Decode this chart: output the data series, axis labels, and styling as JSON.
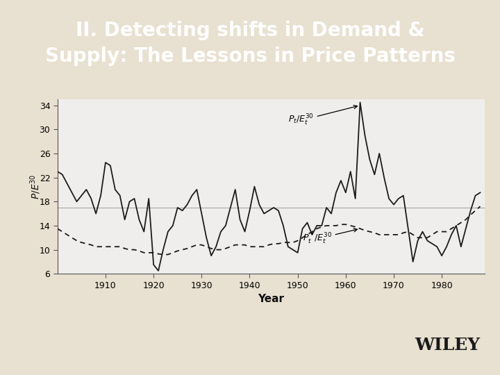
{
  "title": "II. Detecting shifts in Demand &\nSupply: The Lessons in Price Patterns",
  "title_bg_color": "#4a2008",
  "title_text_color": "#ffffff",
  "chart_bg_color": "#f0eeec",
  "outer_bg_color": "#e8e0d0",
  "bottom_bg_color": "#e8dfc8",
  "ylabel": "P/E^{30}",
  "xlabel": "Year",
  "ylim": [
    6,
    35
  ],
  "yticks": [
    6,
    10,
    14,
    18,
    22,
    26,
    30,
    34
  ],
  "xlim": [
    1900,
    1989
  ],
  "xticks": [
    1910,
    1920,
    1930,
    1940,
    1950,
    1960,
    1970,
    1980
  ],
  "hline_y": 17.0,
  "solid_x": [
    1900,
    1901,
    1902,
    1903,
    1904,
    1905,
    1906,
    1907,
    1908,
    1909,
    1910,
    1911,
    1912,
    1913,
    1914,
    1915,
    1916,
    1917,
    1918,
    1919,
    1920,
    1921,
    1922,
    1923,
    1924,
    1925,
    1926,
    1927,
    1928,
    1929,
    1930,
    1931,
    1932,
    1933,
    1934,
    1935,
    1936,
    1937,
    1938,
    1939,
    1940,
    1941,
    1942,
    1943,
    1944,
    1945,
    1946,
    1947,
    1948,
    1949,
    1950,
    1951,
    1952,
    1953,
    1954,
    1955,
    1956,
    1957,
    1958,
    1959,
    1960,
    1961,
    1962,
    1963,
    1964,
    1965,
    1966,
    1967,
    1968,
    1969,
    1970,
    1971,
    1972,
    1973,
    1974,
    1975,
    1976,
    1977,
    1978,
    1979,
    1980,
    1981,
    1982,
    1983,
    1984,
    1985,
    1986,
    1987,
    1988
  ],
  "solid_y": [
    23.0,
    22.5,
    21.0,
    19.5,
    18.0,
    19.0,
    20.0,
    18.5,
    16.0,
    19.0,
    24.5,
    24.0,
    20.0,
    19.0,
    15.0,
    18.0,
    18.5,
    15.0,
    13.0,
    18.5,
    7.5,
    6.5,
    10.0,
    13.0,
    14.0,
    17.0,
    16.5,
    17.5,
    19.0,
    20.0,
    16.0,
    12.0,
    9.0,
    10.5,
    13.0,
    14.0,
    17.0,
    20.0,
    15.0,
    13.0,
    16.5,
    20.5,
    17.5,
    16.0,
    16.5,
    17.0,
    16.5,
    14.0,
    10.5,
    10.0,
    9.5,
    13.5,
    14.5,
    12.5,
    14.0,
    14.0,
    17.0,
    16.0,
    19.5,
    21.5,
    19.5,
    23.0,
    18.5,
    34.5,
    29.0,
    25.0,
    22.5,
    26.0,
    22.0,
    18.5,
    17.5,
    18.5,
    19.0,
    13.5,
    8.0,
    11.5,
    13.0,
    11.5,
    11.0,
    10.5,
    9.0,
    10.5,
    12.5,
    14.0,
    10.5,
    13.5,
    16.5,
    19.0,
    19.5
  ],
  "dashed_x": [
    1900,
    1901,
    1902,
    1903,
    1904,
    1905,
    1906,
    1907,
    1908,
    1909,
    1910,
    1911,
    1912,
    1913,
    1914,
    1915,
    1916,
    1917,
    1918,
    1919,
    1920,
    1921,
    1922,
    1923,
    1924,
    1925,
    1926,
    1927,
    1928,
    1929,
    1930,
    1931,
    1932,
    1933,
    1934,
    1935,
    1936,
    1937,
    1938,
    1939,
    1940,
    1941,
    1942,
    1943,
    1944,
    1945,
    1946,
    1947,
    1948,
    1949,
    1950,
    1951,
    1952,
    1953,
    1954,
    1955,
    1956,
    1957,
    1958,
    1959,
    1960,
    1961,
    1962,
    1963,
    1964,
    1965,
    1966,
    1967,
    1968,
    1969,
    1970,
    1971,
    1972,
    1973,
    1974,
    1975,
    1976,
    1977,
    1978,
    1979,
    1980,
    1981,
    1982,
    1983,
    1984,
    1985,
    1986,
    1987,
    1988
  ],
  "dashed_y": [
    13.5,
    13.0,
    12.5,
    12.0,
    11.5,
    11.2,
    11.0,
    10.8,
    10.5,
    10.5,
    10.5,
    10.5,
    10.5,
    10.5,
    10.2,
    10.0,
    10.0,
    9.8,
    9.5,
    9.5,
    9.5,
    9.3,
    9.2,
    9.2,
    9.5,
    9.8,
    10.0,
    10.2,
    10.5,
    10.8,
    10.8,
    10.5,
    10.2,
    10.0,
    10.0,
    10.2,
    10.5,
    10.8,
    10.8,
    10.8,
    10.5,
    10.5,
    10.5,
    10.5,
    10.8,
    11.0,
    11.0,
    11.2,
    11.2,
    11.2,
    11.5,
    12.0,
    12.5,
    13.0,
    13.5,
    13.8,
    14.0,
    14.0,
    14.0,
    14.2,
    14.2,
    14.0,
    13.8,
    13.5,
    13.2,
    13.0,
    12.8,
    12.5,
    12.5,
    12.5,
    12.5,
    12.5,
    12.8,
    13.0,
    12.5,
    12.0,
    12.0,
    12.0,
    12.5,
    13.0,
    13.0,
    13.0,
    13.5,
    14.0,
    14.5,
    15.0,
    15.8,
    16.5,
    17.2
  ]
}
